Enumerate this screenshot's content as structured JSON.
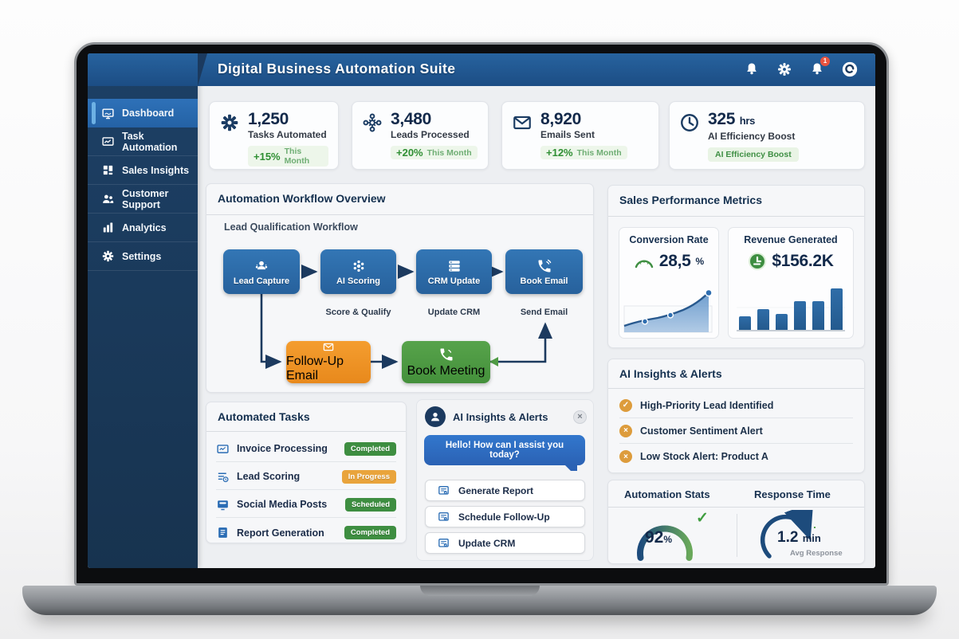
{
  "header": {
    "title": "Digital Business Automation Suite",
    "badge": "1",
    "icons": [
      "notifications-bell",
      "settings-gear",
      "alerts-bell",
      "assistant-logo"
    ]
  },
  "sidebar": {
    "items": [
      {
        "label": "Dashboard",
        "icon": "monitor-icon",
        "active": true
      },
      {
        "label": "Task Automation",
        "icon": "automation-board-icon",
        "active": false
      },
      {
        "label": "Sales Insights",
        "icon": "grid-icon",
        "active": false
      },
      {
        "label": "Customer Support",
        "icon": "people-icon",
        "active": false
      },
      {
        "label": "Analytics",
        "icon": "bar-chart-icon",
        "active": false
      },
      {
        "label": "Settings",
        "icon": "gear-icon",
        "active": false
      }
    ]
  },
  "stats": [
    {
      "icon": "gear-icon",
      "value": "1,250",
      "label": "Tasks Automated",
      "change": "+15%",
      "period": "This Month"
    },
    {
      "icon": "network-icon",
      "value": "3,480",
      "label": "Leads Processed",
      "change": "+20%",
      "period": "This Month"
    },
    {
      "icon": "envelope-icon",
      "value": "8,920",
      "label": "Emails Sent",
      "change": "+12%",
      "period": "This Month"
    },
    {
      "icon": "clock-icon",
      "value": "325",
      "unit": "hrs",
      "label": "AI Efficiency Boost",
      "badge": "AI Efficiency Boost"
    }
  ],
  "workflow": {
    "title": "Automation Workflow Overview",
    "subtitle": "Lead Qualification Workflow",
    "nodes": [
      {
        "label": "Lead Capture",
        "icon": "users-icon",
        "sublabel": ""
      },
      {
        "label": "AI Scoring",
        "icon": "ai-cluster-icon",
        "sublabel": "Score & Qualify"
      },
      {
        "label": "CRM Update",
        "icon": "server-list-icon",
        "sublabel": "Update CRM"
      },
      {
        "label": "Book Email",
        "icon": "phone-icon",
        "sublabel": "Send Email"
      }
    ],
    "branch": [
      {
        "label": "Follow-Up Email",
        "icon": "envelope-icon",
        "color": "linear-gradient(180deg,#f49d2f,#e8891c)"
      },
      {
        "label": "Book Meeting",
        "icon": "phone-icon",
        "color": "linear-gradient(180deg,#57a34b,#44903b)"
      }
    ],
    "arrow_color": "#1c3a5f"
  },
  "sales": {
    "title": "Sales Performance Metrics",
    "conversion": {
      "label": "Conversion Rate",
      "value": "28,5",
      "unit": "%",
      "trend": [
        20,
        21.5,
        22.5,
        24.5,
        26.5,
        28.5
      ]
    },
    "revenue": {
      "label": "Revenue Generated",
      "value": "$156.2K",
      "bars": [
        30,
        46,
        36,
        64,
        64,
        92
      ]
    }
  },
  "alerts": {
    "title": "AI Insights & Alerts",
    "items": [
      {
        "icon": "check",
        "glyph": "✓",
        "text": "High-Priority Lead Identified"
      },
      {
        "icon": "cross",
        "glyph": "×",
        "text": "Customer Sentiment Alert"
      },
      {
        "icon": "cross",
        "glyph": "×",
        "text": "Low Stock Alert: Product A"
      }
    ]
  },
  "tasks": {
    "title": "Automated Tasks",
    "rows": [
      {
        "icon": "envelope-icon",
        "label": "Invoice Processing",
        "status": "Completed",
        "status_color": "#3e8e41"
      },
      {
        "icon": "list-clock-icon",
        "label": "Lead Scoring",
        "status": "In Progress",
        "status_color": "#e9a43c"
      },
      {
        "icon": "monitor-chat-icon",
        "label": "Social Media Posts",
        "status": "Scheduled",
        "status_color": "#3e8e41"
      },
      {
        "icon": "document-icon",
        "label": "Report Generation",
        "status": "Completed",
        "status_color": "#3e8e41"
      }
    ]
  },
  "chat": {
    "title": "AI Insights & Alerts",
    "close": "×",
    "message": "Hello! How can I assist you today?",
    "actions": [
      {
        "label": "Generate Report"
      },
      {
        "label": "Schedule Follow-Up"
      },
      {
        "label": "Update CRM"
      }
    ]
  },
  "gauges": {
    "automation": {
      "title": "Automation Stats",
      "value": "92",
      "unit": "%",
      "check": "✓"
    },
    "response": {
      "title": "Response Time",
      "value": "1.2",
      "unit": "min",
      "caption": "Avg Response"
    }
  },
  "colors": {
    "header_blue": "#1c4d84",
    "sidebar_navy": "#17334f",
    "node_blue": "#27619c",
    "orange": "#ef9327",
    "green": "#4f9b44",
    "positive_green": "#2f8f33",
    "alert_orange": "#dd9c3c"
  }
}
